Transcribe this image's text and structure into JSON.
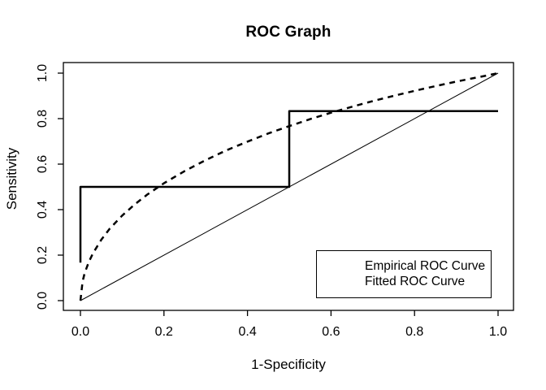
{
  "colors": {
    "foreground": "#000000",
    "background": "#ffffff"
  },
  "chart_data": {
    "type": "line",
    "title": "ROC Graph",
    "xlabel": "1-Specificity",
    "ylabel": "Sensitivity",
    "xlim": [
      0,
      1
    ],
    "ylim": [
      0,
      1
    ],
    "grid": false,
    "x_ticks": [
      "0.0",
      "0.2",
      "0.4",
      "0.6",
      "0.8",
      "1.0"
    ],
    "x_tick_values": [
      0,
      0.2,
      0.4,
      0.6,
      0.8,
      1.0
    ],
    "y_ticks": [
      "0.0",
      "0.2",
      "0.4",
      "0.6",
      "0.8",
      "1.0"
    ],
    "y_tick_values": [
      0,
      0.2,
      0.4,
      0.6,
      0.8,
      1.0
    ],
    "series": [
      {
        "name": "Empirical ROC Curve",
        "style": "solid",
        "width": 2.5,
        "in_legend": true,
        "points": [
          [
            0,
            0.167
          ],
          [
            0,
            0.5
          ],
          [
            0.5,
            0.5
          ],
          [
            0.5,
            0.833
          ],
          [
            1,
            0.833
          ]
        ]
      },
      {
        "name": "Fitted ROC Curve",
        "style": "dashed",
        "width": 2.5,
        "in_legend": true,
        "points": [
          [
            0,
            0
          ],
          [
            0.005,
            0.083
          ],
          [
            0.01,
            0.12
          ],
          [
            0.02,
            0.17
          ],
          [
            0.03,
            0.208
          ],
          [
            0.05,
            0.268
          ],
          [
            0.07,
            0.316
          ],
          [
            0.1,
            0.374
          ],
          [
            0.13,
            0.423
          ],
          [
            0.16,
            0.466
          ],
          [
            0.2,
            0.516
          ],
          [
            0.25,
            0.57
          ],
          [
            0.3,
            0.618
          ],
          [
            0.35,
            0.661
          ],
          [
            0.4,
            0.699
          ],
          [
            0.45,
            0.735
          ],
          [
            0.5,
            0.767
          ],
          [
            0.55,
            0.798
          ],
          [
            0.6,
            0.826
          ],
          [
            0.65,
            0.852
          ],
          [
            0.7,
            0.877
          ],
          [
            0.75,
            0.9
          ],
          [
            0.8,
            0.922
          ],
          [
            0.85,
            0.943
          ],
          [
            0.9,
            0.963
          ],
          [
            0.95,
            0.981
          ],
          [
            0.98,
            0.992
          ],
          [
            1,
            1
          ]
        ]
      },
      {
        "name": "Chance Line",
        "style": "solid",
        "width": 1,
        "in_legend": false,
        "points": [
          [
            0,
            0
          ],
          [
            1,
            1
          ]
        ]
      }
    ],
    "legend": {
      "position": "bottom-right",
      "entries": [
        "Empirical ROC Curve",
        "Fitted ROC Curve"
      ]
    }
  }
}
